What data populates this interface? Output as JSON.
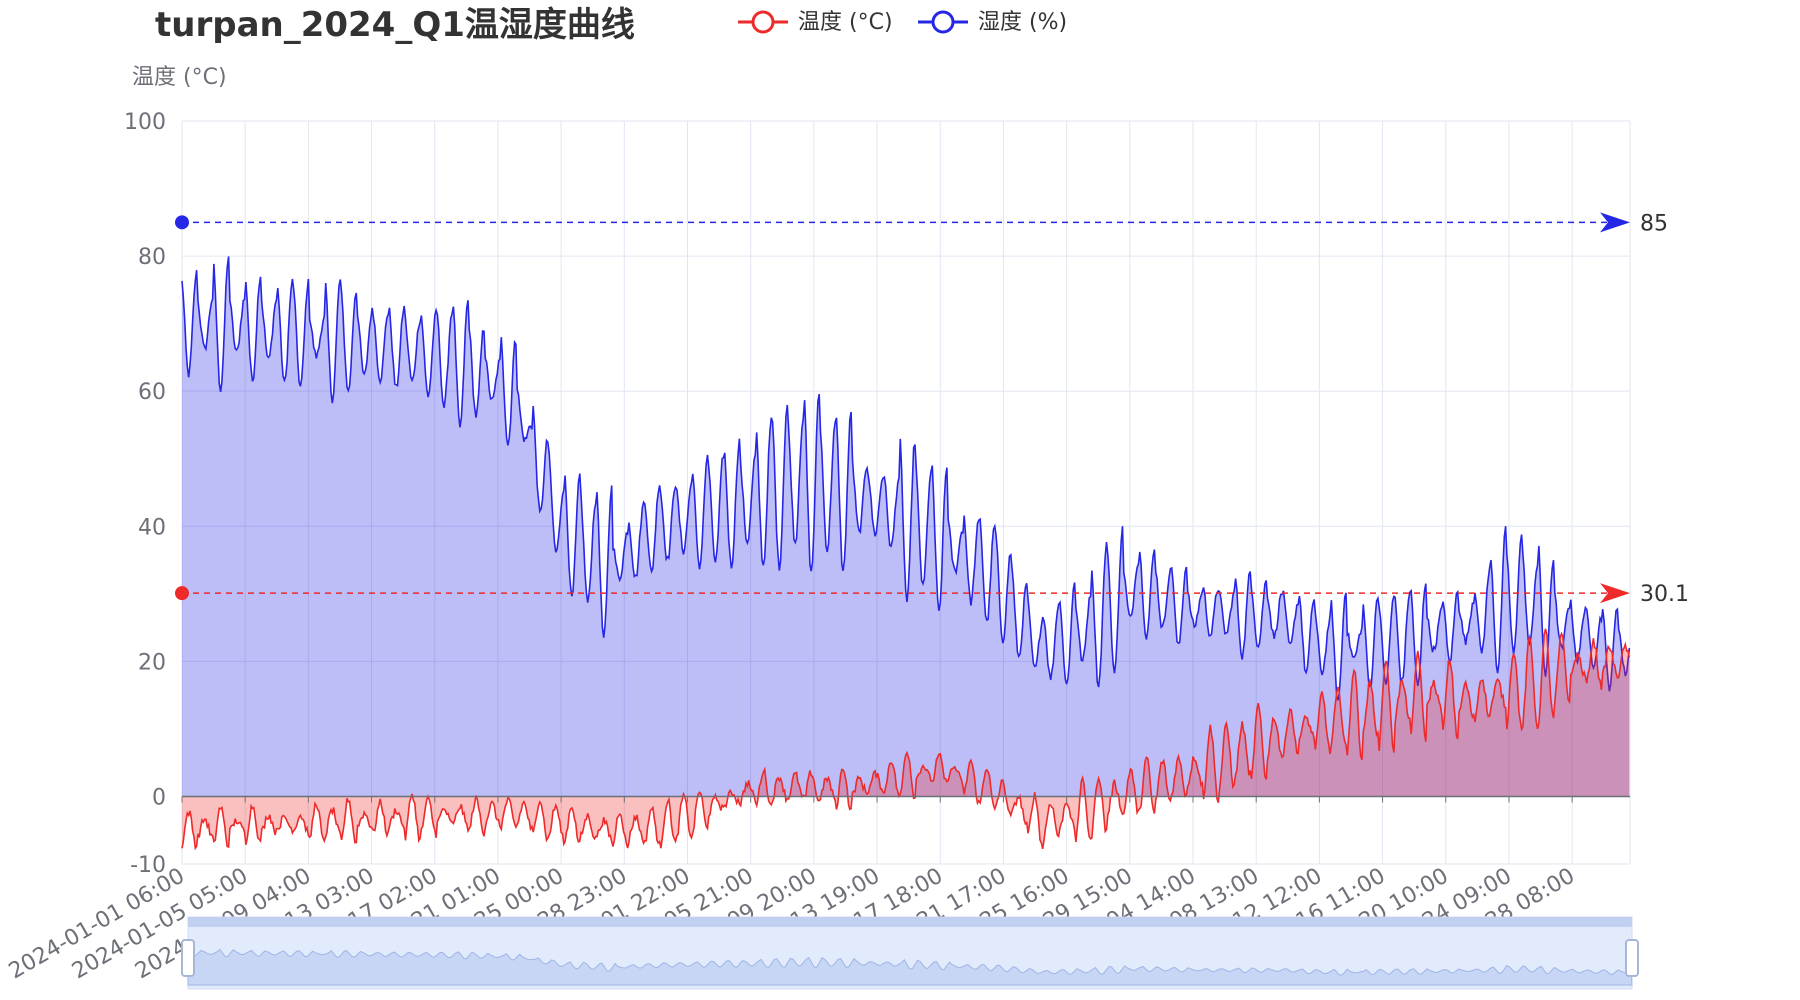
{
  "title": "turpan_2024_Q1温湿度曲线",
  "legend": [
    {
      "name": "温度 (°C)",
      "color": "#ee2a2a"
    },
    {
      "name": "湿度 (%)",
      "color": "#2626e6"
    }
  ],
  "yaxis_name": "温度 (°C)",
  "chart_data": {
    "type": "line",
    "title": "turpan_2024_Q1温湿度曲线",
    "ylabel": "温度 (°C)",
    "ylim": [
      -10,
      100
    ],
    "yticks": [
      -10,
      0,
      20,
      40,
      60,
      80,
      100
    ],
    "x_range": [
      "2024-01-01 06:00",
      "2024-03-31 23:00"
    ],
    "xtick_labels": [
      "2024-01-01 06:00",
      "2024-01-05 05:00",
      "2024-01-09 04:00",
      "2024-01-13 03:00",
      "2024-01-17 02:00",
      "2024-01-21 01:00",
      "2024-01-25 00:00",
      "2024-01-28 23:00",
      "2024-02-01 22:00",
      "2024-02-05 21:00",
      "2024-02-09 20:00",
      "2024-02-13 19:00",
      "2024-02-17 18:00",
      "2024-02-21 17:00",
      "2024-02-25 16:00",
      "2024-02-29 15:00",
      "2024-03-04 14:00",
      "2024-03-08 13:00",
      "2024-03-12 12:00",
      "2024-03-16 11:00",
      "2024-03-20 10:00",
      "2024-03-24 09:00",
      "2024-03-28 08:00"
    ],
    "grid": true,
    "legend_position": "top-center",
    "series": [
      {
        "name": "温度 (°C)",
        "color": "#ee2a2a",
        "area": true,
        "mark_line_max": 30.1,
        "x": [
          "2024-01-01",
          "2024-01-04",
          "2024-01-07",
          "2024-01-10",
          "2024-01-13",
          "2024-01-16",
          "2024-01-19",
          "2024-01-22",
          "2024-01-25",
          "2024-01-28",
          "2024-01-31",
          "2024-02-03",
          "2024-02-06",
          "2024-02-09",
          "2024-02-12",
          "2024-02-15",
          "2024-02-18",
          "2024-02-21",
          "2024-02-24",
          "2024-02-27",
          "2024-03-01",
          "2024-03-04",
          "2024-03-07",
          "2024-03-10",
          "2024-03-13",
          "2024-03-16",
          "2024-03-19",
          "2024-03-22",
          "2024-03-25",
          "2024-03-28",
          "2024-03-31"
        ],
        "daily_mean": [
          -5,
          -4.5,
          -4,
          -4,
          -3.5,
          -3,
          -3,
          -2.5,
          -4,
          -5,
          -4.5,
          -2,
          1,
          1.5,
          1,
          3,
          4,
          1,
          -4,
          -2,
          1,
          3,
          6,
          9,
          11,
          13,
          15,
          14,
          16,
          19,
          20
        ],
        "daily_amplitude": [
          3,
          3,
          3,
          3,
          3,
          3,
          3,
          3,
          3,
          3,
          3,
          3,
          3,
          3,
          3,
          4,
          4,
          3,
          4,
          4,
          4,
          5,
          6,
          6,
          6,
          6,
          6,
          6,
          6,
          6,
          6
        ]
      },
      {
        "name": "湿度 (%)",
        "color": "#2626e6",
        "area": true,
        "mark_line_max": 85,
        "x": [
          "2024-01-01",
          "2024-01-04",
          "2024-01-07",
          "2024-01-10",
          "2024-01-13",
          "2024-01-16",
          "2024-01-19",
          "2024-01-22",
          "2024-01-25",
          "2024-01-28",
          "2024-01-31",
          "2024-02-03",
          "2024-02-06",
          "2024-02-09",
          "2024-02-12",
          "2024-02-15",
          "2024-02-18",
          "2024-02-21",
          "2024-02-24",
          "2024-02-27",
          "2024-03-01",
          "2024-03-04",
          "2024-03-07",
          "2024-03-10",
          "2024-03-13",
          "2024-03-16",
          "2024-03-19",
          "2024-03-22",
          "2024-03-25",
          "2024-03-28",
          "2024-03-31"
        ],
        "daily_mean": [
          70,
          70,
          69,
          68,
          67,
          66,
          64,
          60,
          40,
          34,
          40,
          42,
          44,
          47,
          45,
          42,
          38,
          33,
          22,
          25,
          31,
          28,
          27,
          27,
          22,
          23,
          24,
          26,
          30,
          25,
          22
        ],
        "daily_amplitude": [
          9,
          9,
          9,
          9,
          9,
          9,
          9,
          9,
          9,
          10,
          10,
          11,
          12,
          12,
          12,
          11,
          10,
          8,
          7,
          9,
          10,
          9,
          8,
          8,
          7,
          8,
          8,
          8,
          14,
          9,
          7
        ]
      }
    ]
  },
  "markline_labels": {
    "humidity_max": "85",
    "temperature_max": "30.1"
  }
}
